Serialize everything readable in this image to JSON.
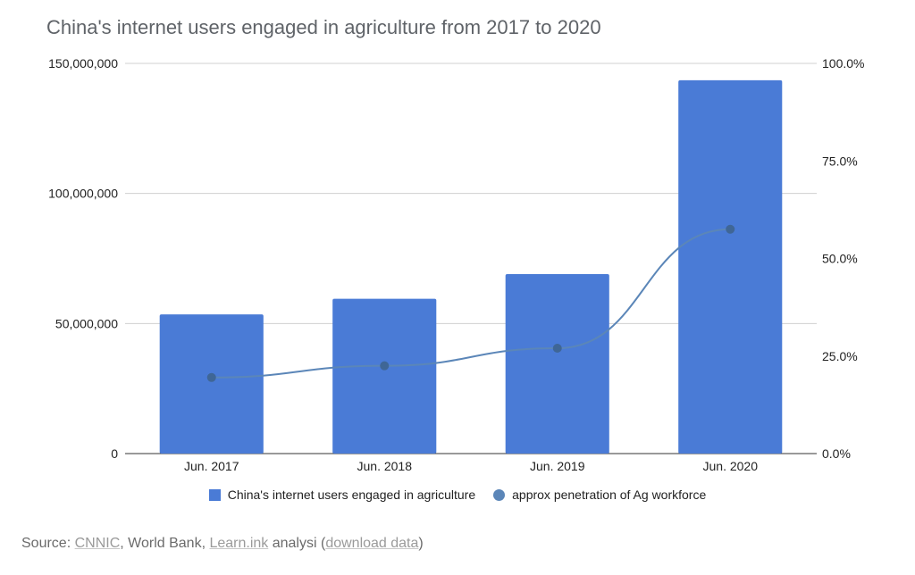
{
  "chart_data": {
    "type": "bar",
    "title": "China's internet users engaged in agriculture from 2017 to 2020",
    "categories": [
      "Jun. 2017",
      "Jun. 2018",
      "Jun. 2019",
      "Jun. 2020"
    ],
    "series": [
      {
        "name": "China's internet users engaged in agriculture",
        "type": "bar",
        "axis": "left",
        "color": "#4a7bd6",
        "values": [
          53500000,
          59500000,
          69000000,
          143500000
        ]
      },
      {
        "name": "approx penetration of Ag workforce",
        "type": "line",
        "axis": "right",
        "color": "#5b86b8",
        "values": [
          19.5,
          22.5,
          27.0,
          57.5
        ]
      }
    ],
    "y_left": {
      "min": 0,
      "max": 150000000,
      "ticks": [
        0,
        50000000,
        100000000,
        150000000
      ],
      "tick_labels": [
        "0",
        "50,000,000",
        "100,000,000",
        "150,000,000"
      ]
    },
    "y_right": {
      "min": 0,
      "max": 100,
      "ticks": [
        0,
        25,
        50,
        75,
        100
      ],
      "tick_labels": [
        "0.0%",
        "25.0%",
        "50.0%",
        "75.0%",
        "100.0%"
      ]
    },
    "grid": true,
    "legend_position": "bottom"
  },
  "source": {
    "prefix": "Source: ",
    "link1": "CNNIC",
    "mid1": ", World Bank, ",
    "link2": "Learn.ink",
    "mid2": " analysi (",
    "link3": "download data",
    "suffix": ")"
  }
}
